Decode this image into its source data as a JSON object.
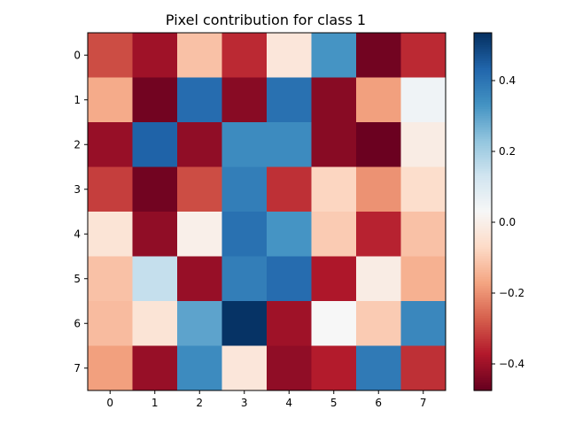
{
  "chart_data": {
    "type": "heatmap",
    "title": "Pixel contribution for class 1",
    "xlabel": "",
    "ylabel": "",
    "x_ticks": [
      "0",
      "1",
      "2",
      "3",
      "4",
      "5",
      "6",
      "7"
    ],
    "y_ticks": [
      "0",
      "1",
      "2",
      "3",
      "4",
      "5",
      "6",
      "7"
    ],
    "colormap": "RdBu",
    "vmin": -0.475,
    "vmax": 0.535,
    "colorbar_ticks": [
      {
        "value": -0.4,
        "label": "−0.4"
      },
      {
        "value": -0.2,
        "label": "−0.2"
      },
      {
        "value": 0.0,
        "label": "0.0"
      },
      {
        "value": 0.2,
        "label": "0.2"
      },
      {
        "value": 0.4,
        "label": "0.4"
      }
    ],
    "values": [
      [
        -0.3,
        -0.4,
        -0.12,
        -0.35,
        -0.03,
        0.33,
        -0.46,
        -0.35
      ],
      [
        -0.16,
        -0.46,
        0.42,
        -0.43,
        0.41,
        -0.43,
        -0.18,
        0.05
      ],
      [
        -0.41,
        0.44,
        -0.42,
        0.35,
        0.35,
        -0.43,
        -0.47,
        -0.01
      ],
      [
        -0.32,
        -0.46,
        -0.3,
        0.38,
        -0.34,
        -0.08,
        -0.2,
        -0.06
      ],
      [
        -0.04,
        -0.42,
        0.0,
        0.41,
        0.33,
        -0.1,
        -0.36,
        -0.12
      ],
      [
        -0.12,
        0.15,
        -0.41,
        0.38,
        0.42,
        -0.38,
        -0.01,
        -0.15
      ],
      [
        -0.13,
        -0.04,
        0.3,
        0.53,
        -0.4,
        0.03,
        -0.1,
        0.36
      ],
      [
        -0.18,
        -0.41,
        0.35,
        -0.03,
        -0.42,
        -0.37,
        0.39,
        -0.34
      ]
    ]
  }
}
